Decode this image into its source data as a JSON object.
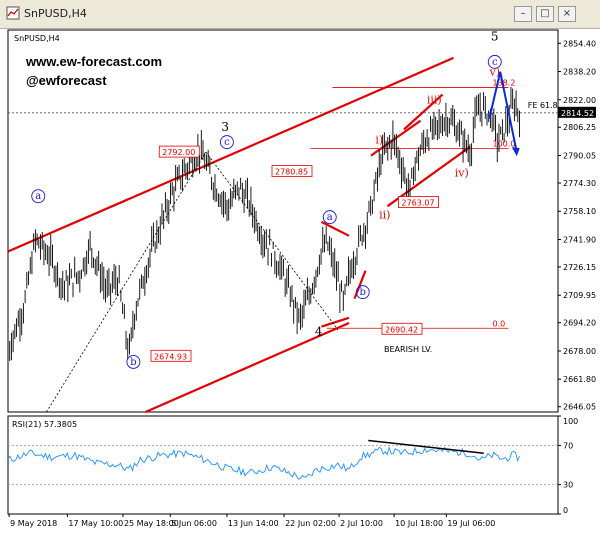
{
  "window": {
    "title": "SnPUSD,H4"
  },
  "chart_data": {
    "type": "line",
    "symbol": "SnPUSD,H4",
    "watermark": [
      "www.ew-forecast.com",
      "@ewforecast"
    ],
    "price_axis": {
      "ylim": [
        2643,
        2862
      ],
      "ticks": [
        2854.4,
        2838.2,
        2822.0,
        2806.25,
        2790.05,
        2774.3,
        2758.1,
        2741.9,
        2726.15,
        2709.95,
        2694.2,
        2678.0,
        2661.8,
        2646.05
      ],
      "current_price": 2814.52,
      "current_price_label": "2814.52"
    },
    "time_axis": {
      "labels": [
        "9 May 2018",
        "17 May 10:00",
        "25 May 18:00",
        "5 Jun 06:00",
        "13 Jun 14:00",
        "22 Jun 02:00",
        "2 Jul 10:00",
        "10 Jul 18:00",
        "19 Jul 06:00"
      ],
      "xlim": [
        0,
        100
      ]
    },
    "price_series": {
      "name": "SnPUSD",
      "x": [
        0,
        3,
        5,
        8,
        10,
        13,
        15,
        18,
        20,
        22,
        23,
        24,
        26,
        28,
        30,
        32,
        34,
        35,
        36,
        38,
        40,
        42,
        44,
        46,
        48,
        50,
        52,
        53,
        55,
        57,
        58,
        59,
        60,
        61,
        62,
        64,
        66,
        68,
        70,
        71,
        72,
        73,
        74,
        76,
        78,
        80,
        82,
        84,
        85,
        86,
        88,
        89,
        90,
        91,
        92,
        93
      ],
      "y": [
        2678,
        2705,
        2742,
        2730,
        2715,
        2722,
        2738,
        2712,
        2720,
        2675,
        2700,
        2712,
        2735,
        2752,
        2770,
        2781,
        2790,
        2792,
        2785,
        2770,
        2760,
        2772,
        2762,
        2745,
        2735,
        2722,
        2705,
        2695,
        2712,
        2735,
        2740,
        2730,
        2718,
        2705,
        2722,
        2742,
        2760,
        2790,
        2800,
        2790,
        2780,
        2768,
        2785,
        2800,
        2806,
        2812,
        2803,
        2792,
        2812,
        2818,
        2812,
        2798,
        2803,
        2812,
        2820,
        2814
      ]
    },
    "price_labels": [
      {
        "value": 2792.0,
        "text": "2792.00"
      },
      {
        "value": 2780.85,
        "text": "2780.85"
      },
      {
        "value": 2763.07,
        "text": "2763.07"
      },
      {
        "value": 2674.93,
        "text": "2674.93"
      },
      {
        "value": 2690.42,
        "text": "2690.42"
      }
    ],
    "fib_levels": [
      {
        "text": "138.2"
      },
      {
        "text": "100.0"
      },
      {
        "text": "0.0"
      }
    ],
    "fib_extension_label": "FE 61.8",
    "wave_labels": [
      {
        "text": "3",
        "color": "#000000"
      },
      {
        "text": "4",
        "color": "#000000"
      },
      {
        "text": "5",
        "color": "#000000"
      },
      {
        "text": "a",
        "color": "#1a1ad0",
        "circled": true
      },
      {
        "text": "b",
        "color": "#1a1ad0",
        "circled": true
      },
      {
        "text": "c",
        "color": "#1a1ad0",
        "circled": true
      },
      {
        "text": "a",
        "color": "#1a1ad0",
        "circled": true
      },
      {
        "text": "b",
        "color": "#1a1ad0",
        "circled": true
      },
      {
        "text": "c",
        "color": "#1a1ad0",
        "circled": true
      },
      {
        "text": "i)",
        "color": "#d01010"
      },
      {
        "text": "ii)",
        "color": "#d01010"
      },
      {
        "text": "iii)",
        "color": "#d01010"
      },
      {
        "text": "iv)",
        "color": "#d01010"
      },
      {
        "text": "v)",
        "color": "#d01010"
      }
    ],
    "annotation": "BEARISH LV.",
    "rsi": {
      "label": "RSI(21) 57.3805",
      "ticks": [
        100,
        70,
        30,
        0
      ],
      "ylim": [
        0,
        100
      ],
      "x": [
        0,
        4,
        8,
        12,
        16,
        20,
        22,
        24,
        28,
        32,
        36,
        40,
        44,
        48,
        52,
        54,
        56,
        60,
        62,
        64,
        68,
        72,
        76,
        80,
        84,
        86,
        88,
        90,
        92,
        93
      ],
      "values": [
        55,
        62,
        58,
        60,
        52,
        50,
        45,
        55,
        60,
        62,
        55,
        46,
        42,
        48,
        40,
        35,
        45,
        50,
        45,
        58,
        65,
        62,
        66,
        64,
        62,
        55,
        60,
        56,
        60,
        57
      ]
    },
    "colors": {
      "price": "#000000",
      "trendline": "#e00000",
      "projection": "#0a2ad8",
      "rsi": "#1e8fff"
    },
    "grid": false
  }
}
